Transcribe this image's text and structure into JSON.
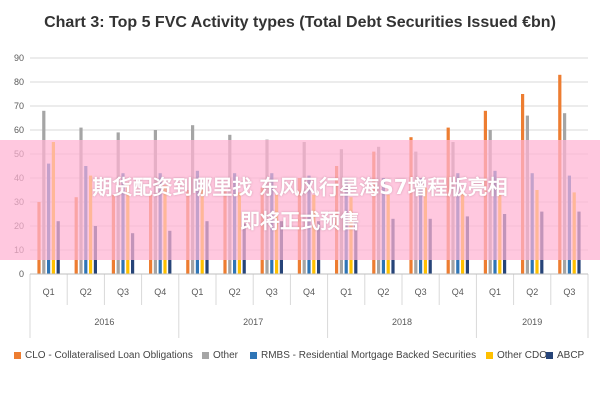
{
  "chart_data": {
    "type": "bar",
    "title": "Chart 3: Top 5 FVC Activity types (Total Debt Securities Issued €bn)",
    "ylim": [
      0,
      90
    ],
    "yticks": [
      "0",
      "10",
      "20",
      "30",
      "40",
      "50",
      "60",
      "70",
      "80",
      "90"
    ],
    "grid": true,
    "legend_position": "bottom",
    "categories": [
      "Q1",
      "Q2",
      "Q3",
      "Q4",
      "Q1",
      "Q2",
      "Q3",
      "Q4",
      "Q1",
      "Q2",
      "Q3",
      "Q4",
      "Q1",
      "Q2",
      "Q3"
    ],
    "groups": [
      {
        "label": "2016",
        "count": 4
      },
      {
        "label": "2017",
        "count": 4
      },
      {
        "label": "2018",
        "count": 4
      },
      {
        "label": "2019",
        "count": 3
      }
    ],
    "series": [
      {
        "name": "CLO - Collateralised Loan Obligations",
        "color": "#ED7D31",
        "values": [
          30,
          32,
          33,
          33,
          35,
          35,
          36,
          40,
          45,
          51,
          57,
          61,
          68,
          75,
          83
        ]
      },
      {
        "name": "Other",
        "color": "#A5A5A5",
        "values": [
          68,
          61,
          59,
          60,
          62,
          58,
          56,
          55,
          52,
          53,
          51,
          55,
          60,
          66,
          67
        ]
      },
      {
        "name": "RMBS - Residential Mortgage Backed Securities",
        "color": "#2E75B6",
        "values": [
          46,
          45,
          42,
          42,
          43,
          42,
          42,
          41,
          40,
          40,
          40,
          42,
          43,
          42,
          41
        ]
      },
      {
        "name": "Other CDO",
        "color": "#FFC000",
        "values": [
          55,
          41,
          38,
          37,
          36,
          34,
          33,
          33,
          32,
          33,
          36,
          34,
          33,
          35,
          34
        ]
      },
      {
        "name": "ABCP",
        "color": "#264478",
        "values": [
          22,
          20,
          17,
          18,
          22,
          21,
          22,
          22,
          22,
          23,
          23,
          24,
          25,
          26,
          26
        ]
      }
    ]
  },
  "overlay": {
    "line1": "期货配资到哪里找 东风风行星海S7增程版亮相",
    "line2": "即将正式预售"
  }
}
